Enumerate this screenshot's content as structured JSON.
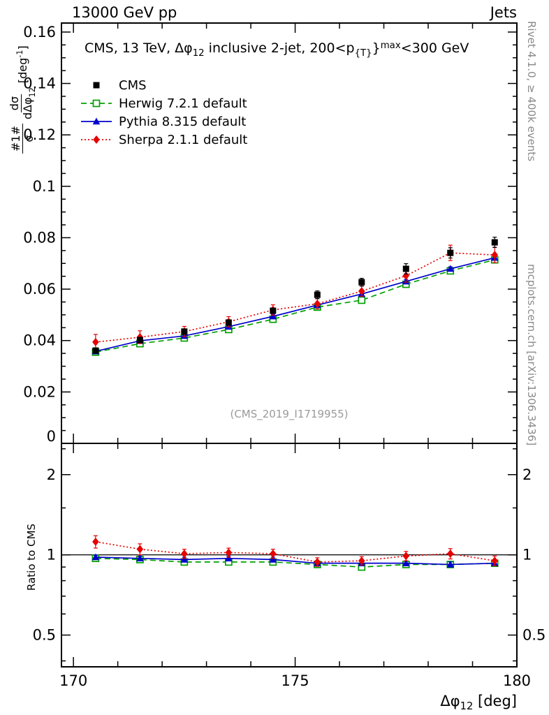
{
  "header": {
    "left": "13000 GeV pp",
    "right": "Jets"
  },
  "main_panel": {
    "title": {
      "pre": "CMS, 13 TeV, Δφ",
      "phi_sub": "12",
      "mid": " inclusive 2-jet, 200<p",
      "pt_sub": "{T}",
      "brace": "}",
      "pt_sup": "max",
      "post": "<300 GeV"
    },
    "ylabel": {
      "f1_num": "#1#",
      "f1_den": "σ",
      "f2_num": "dσ",
      "f2_den": "dΔφ",
      "f2_den_sub": "12",
      "unit_pre": "[deg",
      "unit_sup": "-1",
      "unit_post": "]"
    },
    "watermark": "(CMS_2019_I1719955)"
  },
  "ratio_panel": {
    "ylabel": "Ratio to CMS"
  },
  "x_axis": {
    "label_pre": "Δφ",
    "label_sub": "12",
    "label_post": " [deg]"
  },
  "side_notes": {
    "top": "Rivet 4.1.0, ≥ 400k events",
    "bottom": "mcplots.cern.ch [arXiv:1306.3436]"
  },
  "chart_data": {
    "type": "scatter",
    "xlabel": "Δφ_12 [deg]",
    "x": [
      170.5,
      171.5,
      172.5,
      173.5,
      174.5,
      175.5,
      176.5,
      177.5,
      178.5,
      179.5
    ],
    "xlim": [
      169.73,
      180
    ],
    "xticks": [
      170,
      175,
      180
    ],
    "xtick_labels": [
      "170",
      "175",
      "180"
    ],
    "main": {
      "ylabel": "1/σ dσ/dΔφ_12 [deg^-1]",
      "ylim": [
        0,
        0.1635
      ],
      "yticks": [
        0,
        0.02,
        0.04,
        0.06,
        0.08,
        0.1,
        0.12,
        0.14,
        0.16
      ],
      "ytick_labels": [
        "0",
        "0.02",
        "0.04",
        "0.06",
        "0.08",
        "0.1",
        "0.12",
        "0.14",
        "0.16"
      ],
      "series": [
        {
          "name": "CMS",
          "ref": true,
          "color": "#000000",
          "marker": "square-filled",
          "line": "none",
          "values": [
            0.0361,
            0.0402,
            0.0435,
            0.047,
            0.0516,
            0.0578,
            0.0627,
            0.0679,
            0.0741,
            0.0782
          ],
          "err": [
            0.001,
            0.001,
            0.001,
            0.001,
            0.001,
            0.0015,
            0.0015,
            0.002,
            0.002,
            0.002
          ]
        },
        {
          "name": "Herwig 7.2.1 default",
          "color": "#00a000",
          "marker": "square-open",
          "line": "dashed",
          "values": [
            0.0355,
            0.0388,
            0.041,
            0.0443,
            0.0483,
            0.053,
            0.0557,
            0.0619,
            0.0671,
            0.0714
          ],
          "err": [
            0.0008,
            0.0008,
            0.0008,
            0.0008,
            0.0008,
            0.0008,
            0.0008,
            0.0008,
            0.0008,
            0.0008
          ]
        },
        {
          "name": "Pythia 8.315 default",
          "color": "#0000cc",
          "marker": "triangle-filled",
          "line": "solid",
          "values": [
            0.0358,
            0.0399,
            0.0418,
            0.0454,
            0.0494,
            0.0538,
            0.0581,
            0.063,
            0.0679,
            0.0722
          ],
          "err": [
            0.0008,
            0.0008,
            0.0008,
            0.0008,
            0.0008,
            0.0008,
            0.0008,
            0.0008,
            0.0008,
            0.0008
          ]
        },
        {
          "name": "Sherpa 2.1.1 default",
          "color": "#e60000",
          "marker": "diamond-filled",
          "line": "dotted",
          "values": [
            0.0394,
            0.0413,
            0.0435,
            0.0473,
            0.0519,
            0.0543,
            0.0592,
            0.0652,
            0.0741,
            0.0733
          ],
          "err": [
            0.003,
            0.0025,
            0.002,
            0.002,
            0.002,
            0.002,
            0.002,
            0.0025,
            0.003,
            0.003
          ]
        }
      ]
    },
    "ratio": {
      "ylabel": "Ratio to CMS",
      "scale": "log",
      "ylim": [
        0.38,
        2.62
      ],
      "ticks": [
        0.5,
        1,
        2
      ],
      "tick_labels": [
        "0.5",
        "1",
        "2"
      ],
      "minor_ticks": [
        0.4,
        0.6,
        0.7,
        0.8,
        0.9,
        1.5,
        2.5
      ],
      "reference": 1,
      "series": [
        {
          "name": "Herwig 7.2.1 default",
          "color": "#00a000",
          "marker": "square-open",
          "line": "dashed",
          "values": [
            0.97,
            0.96,
            0.94,
            0.94,
            0.94,
            0.92,
            0.9,
            0.92,
            0.92,
            0.93
          ],
          "err": [
            0.02,
            0.02,
            0.02,
            0.02,
            0.02,
            0.02,
            0.02,
            0.02,
            0.02,
            0.02
          ]
        },
        {
          "name": "Pythia 8.315 default",
          "color": "#0000cc",
          "marker": "triangle-filled",
          "line": "solid",
          "values": [
            0.98,
            0.97,
            0.96,
            0.97,
            0.96,
            0.93,
            0.93,
            0.93,
            0.92,
            0.93
          ],
          "err": [
            0.02,
            0.02,
            0.02,
            0.02,
            0.02,
            0.02,
            0.02,
            0.02,
            0.02,
            0.02
          ]
        },
        {
          "name": "Sherpa 2.1.1 default",
          "color": "#e60000",
          "marker": "diamond-filled",
          "line": "dotted",
          "values": [
            1.12,
            1.05,
            1.01,
            1.02,
            1.01,
            0.94,
            0.95,
            0.99,
            1.01,
            0.95
          ],
          "err": [
            0.06,
            0.05,
            0.04,
            0.04,
            0.04,
            0.035,
            0.035,
            0.04,
            0.045,
            0.04
          ]
        }
      ]
    }
  }
}
